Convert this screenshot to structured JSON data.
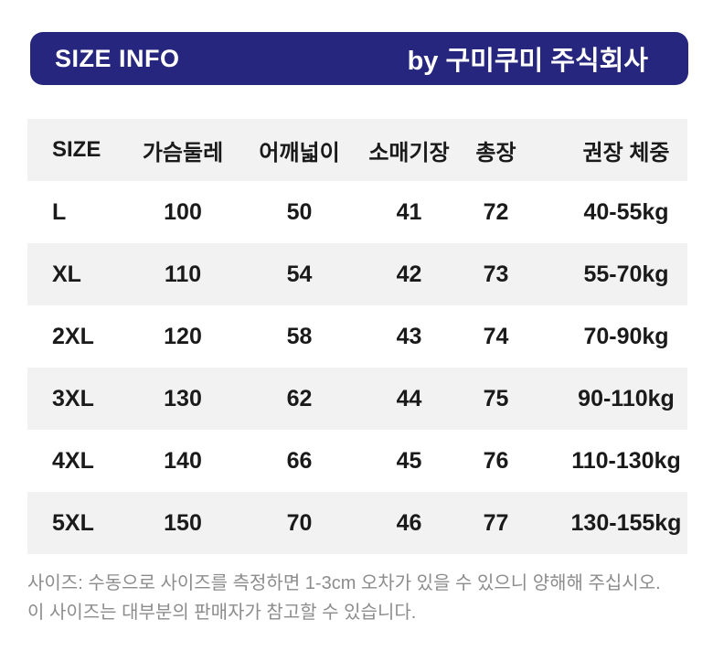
{
  "banner": {
    "title": "SIZE INFO",
    "byline": "by 구미쿠미 주식회사"
  },
  "table": {
    "columns": [
      "SIZE",
      "가슴둘레",
      "어깨넓이",
      "소매기장",
      "총장",
      "권장 체중"
    ],
    "rows": [
      [
        "L",
        "100",
        "50",
        "41",
        "72",
        "40-55kg"
      ],
      [
        "XL",
        "110",
        "54",
        "42",
        "73",
        "55-70kg"
      ],
      [
        "2XL",
        "120",
        "58",
        "43",
        "74",
        "70-90kg"
      ],
      [
        "3XL",
        "130",
        "62",
        "44",
        "75",
        "90-110kg"
      ],
      [
        "4XL",
        "140",
        "66",
        "45",
        "76",
        "110-130kg"
      ],
      [
        "5XL",
        "150",
        "70",
        "46",
        "77",
        "130-155kg"
      ]
    ]
  },
  "footnote": {
    "line1": "사이즈: 수동으로 사이즈를 측정하면 1-3cm 오차가 있을 수 있으니 양해해 주십시오.",
    "line2": "이 사이즈는 대부분의 판매자가 참고할 수 있습니다."
  },
  "colors": {
    "banner_bg": "#26267E",
    "banner_text": "#FFFFFF",
    "stripe_bg": "#F2F2F2",
    "body_text": "#1A1A1A",
    "footnote_text": "#8C8C8C"
  }
}
